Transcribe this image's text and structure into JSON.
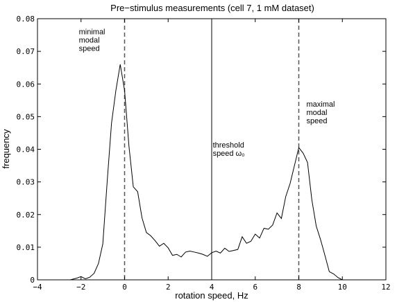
{
  "chart_data": {
    "type": "line",
    "title": "Pre−stimulus measurements (cell 7, 1 mM dataset)",
    "xlabel": "rotation speed, Hz",
    "ylabel": "frequency",
    "xlim": [
      -4,
      12
    ],
    "ylim": [
      0,
      0.08
    ],
    "xticks": [
      -4,
      -2,
      0,
      2,
      4,
      6,
      8,
      10,
      12
    ],
    "xtick_labels": [
      "−4",
      "−2",
      "0",
      "2",
      "4",
      "6",
      "8",
      "10",
      "12"
    ],
    "yticks": [
      0,
      0.01,
      0.02,
      0.03,
      0.04,
      0.05,
      0.06,
      0.07,
      0.08
    ],
    "ytick_labels": [
      "0",
      "0.01",
      "0.02",
      "0.03",
      "0.04",
      "0.05",
      "0.06",
      "0.07",
      "0.08"
    ],
    "grid": false,
    "series": [
      {
        "x": [
          -3.0,
          -2.5,
          -2.2,
          -2.0,
          -1.8,
          -1.6,
          -1.4,
          -1.2,
          -1.0,
          -0.8,
          -0.6,
          -0.4,
          -0.2,
          0.0,
          0.2,
          0.4,
          0.6,
          0.8,
          1.0,
          1.2,
          1.4,
          1.6,
          1.8,
          2.0,
          2.2,
          2.4,
          2.6,
          2.8,
          3.0,
          3.2,
          3.4,
          3.6,
          3.8,
          4.0,
          4.2,
          4.4,
          4.6,
          4.8,
          5.0,
          5.2,
          5.4,
          5.6,
          5.8,
          6.0,
          6.2,
          6.4,
          6.6,
          6.8,
          7.0,
          7.2,
          7.4,
          7.6,
          7.8,
          8.0,
          8.2,
          8.4,
          8.6,
          8.8,
          9.0,
          9.2,
          9.4,
          9.6,
          9.8,
          10.0
        ],
        "y": [
          0.0,
          0.0,
          0.0005,
          0.001,
          0.0003,
          0.0008,
          0.002,
          0.005,
          0.011,
          0.03,
          0.048,
          0.058,
          0.066,
          0.058,
          0.041,
          0.0285,
          0.027,
          0.019,
          0.0145,
          0.0135,
          0.012,
          0.0103,
          0.0112,
          0.0098,
          0.0075,
          0.0078,
          0.007,
          0.0085,
          0.0088,
          0.0085,
          0.0082,
          0.0078,
          0.0072,
          0.0083,
          0.0088,
          0.0082,
          0.0097,
          0.0087,
          0.009,
          0.0093,
          0.0132,
          0.0112,
          0.0118,
          0.014,
          0.0128,
          0.0158,
          0.0155,
          0.0168,
          0.0205,
          0.0188,
          0.0255,
          0.0295,
          0.035,
          0.0405,
          0.0388,
          0.036,
          0.0245,
          0.0165,
          0.0123,
          0.0075,
          0.0025,
          0.0018,
          0.0007,
          0.0
        ]
      }
    ],
    "reference_lines": [
      {
        "x": 0,
        "style": "dashed"
      },
      {
        "x": 4,
        "style": "solid"
      },
      {
        "x": 8,
        "style": "dashed"
      }
    ],
    "annotations": [
      {
        "lines": [
          "minimal",
          "modal",
          "speed"
        ],
        "x": -2.1,
        "y": 0.0752
      },
      {
        "lines": [
          "threshold",
          "speed ω₀"
        ],
        "x": 4.05,
        "y": 0.0405
      },
      {
        "lines": [
          "maximal",
          "modal",
          "speed"
        ],
        "x": 8.35,
        "y": 0.053
      }
    ]
  }
}
